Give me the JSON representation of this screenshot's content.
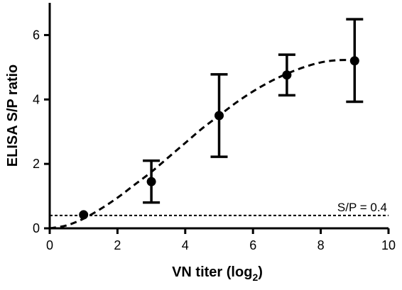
{
  "chart_data": {
    "type": "scatter",
    "xlabel_main": "VN titer (log",
    "xlabel_sub": "2",
    "xlabel_end": ")",
    "ylabel": "ELISA S/P ratio",
    "xlim": [
      0,
      10
    ],
    "ylim": [
      0,
      7
    ],
    "x_ticks": [
      0,
      2,
      4,
      6,
      8,
      10
    ],
    "y_ticks": [
      0,
      2,
      4,
      6
    ],
    "series": [
      {
        "points": [
          {
            "x": 1,
            "y": 0.42,
            "low": 0.42,
            "high": 0.42
          },
          {
            "x": 3,
            "y": 1.45,
            "low": 0.8,
            "high": 2.1
          },
          {
            "x": 5,
            "y": 3.5,
            "low": 2.22,
            "high": 4.78
          },
          {
            "x": 7,
            "y": 4.76,
            "low": 4.13,
            "high": 5.39
          },
          {
            "x": 9,
            "y": 5.2,
            "low": 3.93,
            "high": 6.49
          }
        ]
      }
    ],
    "fit_curve": {
      "style": "dashed",
      "points": [
        [
          0,
          0
        ],
        [
          0.5,
          0.09
        ],
        [
          1,
          0.3
        ],
        [
          1.5,
          0.6
        ],
        [
          2,
          0.95
        ],
        [
          2.5,
          1.35
        ],
        [
          3,
          1.75
        ],
        [
          3.5,
          2.2
        ],
        [
          4,
          2.65
        ],
        [
          4.5,
          3.1
        ],
        [
          5,
          3.5
        ],
        [
          5.5,
          3.9
        ],
        [
          6,
          4.25
        ],
        [
          6.5,
          4.55
        ],
        [
          7,
          4.8
        ],
        [
          7.5,
          5.0
        ],
        [
          8,
          5.15
        ],
        [
          8.5,
          5.22
        ],
        [
          9,
          5.22
        ]
      ]
    },
    "reference_line": {
      "y": 0.4,
      "label": "S/P = 0.4",
      "style": "dotted"
    },
    "grid": false,
    "legend": "none"
  }
}
